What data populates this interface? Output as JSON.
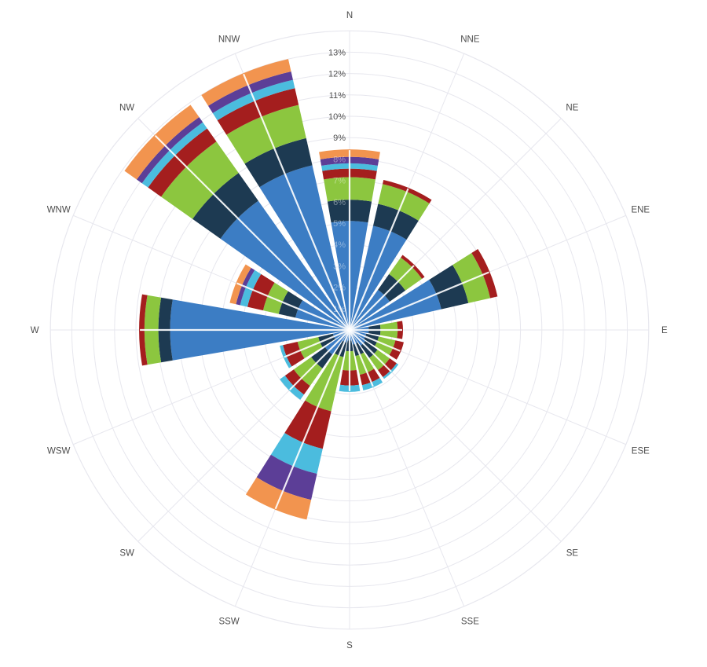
{
  "chart_data": {
    "type": "bar",
    "subtype": "polar-windrose-stacked",
    "title": "",
    "angular_unit": "compass-direction",
    "radial_unit": "%",
    "directions": [
      "N",
      "NNE",
      "NE",
      "ENE",
      "E",
      "ESE",
      "SE",
      "SSE",
      "S",
      "SSW",
      "SW",
      "WSW",
      "W",
      "WNW",
      "NW",
      "NNW"
    ],
    "series": [
      {
        "name": "bin-1-inner",
        "color": "#3c7dc4",
        "values": [
          5.1,
          5.0,
          2.3,
          4.4,
          0.9,
          0.8,
          0.9,
          0.7,
          0.5,
          0.6,
          1.4,
          0.8,
          8.4,
          2.6,
          7.4,
          7.9
        ]
      },
      {
        "name": "bin-2",
        "color": "#1d3a52",
        "values": [
          1.0,
          1.05,
          0.9,
          1.3,
          0.55,
          0.6,
          0.7,
          0.55,
          0.5,
          0.7,
          0.8,
          0.7,
          0.55,
          0.8,
          1.6,
          1.3
        ]
      },
      {
        "name": "bin-3",
        "color": "#8cc63f",
        "values": [
          1.05,
          0.95,
          0.95,
          1.05,
          0.8,
          0.8,
          0.7,
          0.9,
          0.9,
          2.6,
          1.0,
          1.0,
          0.65,
          0.75,
          1.8,
          1.6
        ]
      },
      {
        "name": "bin-4",
        "color": "#a41e1e",
        "values": [
          0.4,
          0.2,
          0.15,
          0.35,
          0.25,
          0.4,
          0.4,
          0.5,
          0.7,
          1.8,
          0.5,
          0.7,
          0.25,
          0.75,
          0.75,
          0.8
        ]
      },
      {
        "name": "bin-5",
        "color": "#4bbcde",
        "values": [
          0.25,
          0.0,
          0.0,
          0.0,
          0.0,
          0.0,
          0.1,
          0.25,
          0.3,
          1.2,
          0.3,
          0.15,
          0.0,
          0.35,
          0.35,
          0.4
        ]
      },
      {
        "name": "bin-6",
        "color": "#5c3e97",
        "values": [
          0.3,
          0.0,
          0.0,
          0.0,
          0.0,
          0.0,
          0.0,
          0.0,
          0.0,
          1.25,
          0.0,
          0.0,
          0.0,
          0.2,
          0.3,
          0.4
        ]
      },
      {
        "name": "bin-7-outer",
        "color": "#f2944f",
        "values": [
          0.35,
          0.0,
          0.0,
          0.0,
          0.0,
          0.0,
          0.0,
          0.0,
          0.0,
          0.95,
          0.0,
          0.0,
          0.0,
          0.3,
          0.7,
          0.6
        ]
      }
    ],
    "radial_axis": {
      "max": 14,
      "tick_step": 1,
      "visible_tick_labels": [
        "9%",
        "10%",
        "11%",
        "12%",
        "13%"
      ],
      "ghost_tick_labels": [
        "1%",
        "2%",
        "3%",
        "4%",
        "5%",
        "6%",
        "7%",
        "8%"
      ],
      "grid": true
    },
    "angular_axis": {
      "grid": true,
      "labels": [
        "N",
        "NNE",
        "NE",
        "ENE",
        "E",
        "ESE",
        "SE",
        "SSE",
        "S",
        "SSW",
        "SW",
        "WSW",
        "W",
        "WNW",
        "NW",
        "NNW"
      ]
    },
    "legend_position": "none"
  },
  "styles": {
    "background_color": "#ffffff",
    "grid_color": "#e7e7ee",
    "label_color": "#4d4d4d",
    "separator_color": "#ffffff"
  }
}
